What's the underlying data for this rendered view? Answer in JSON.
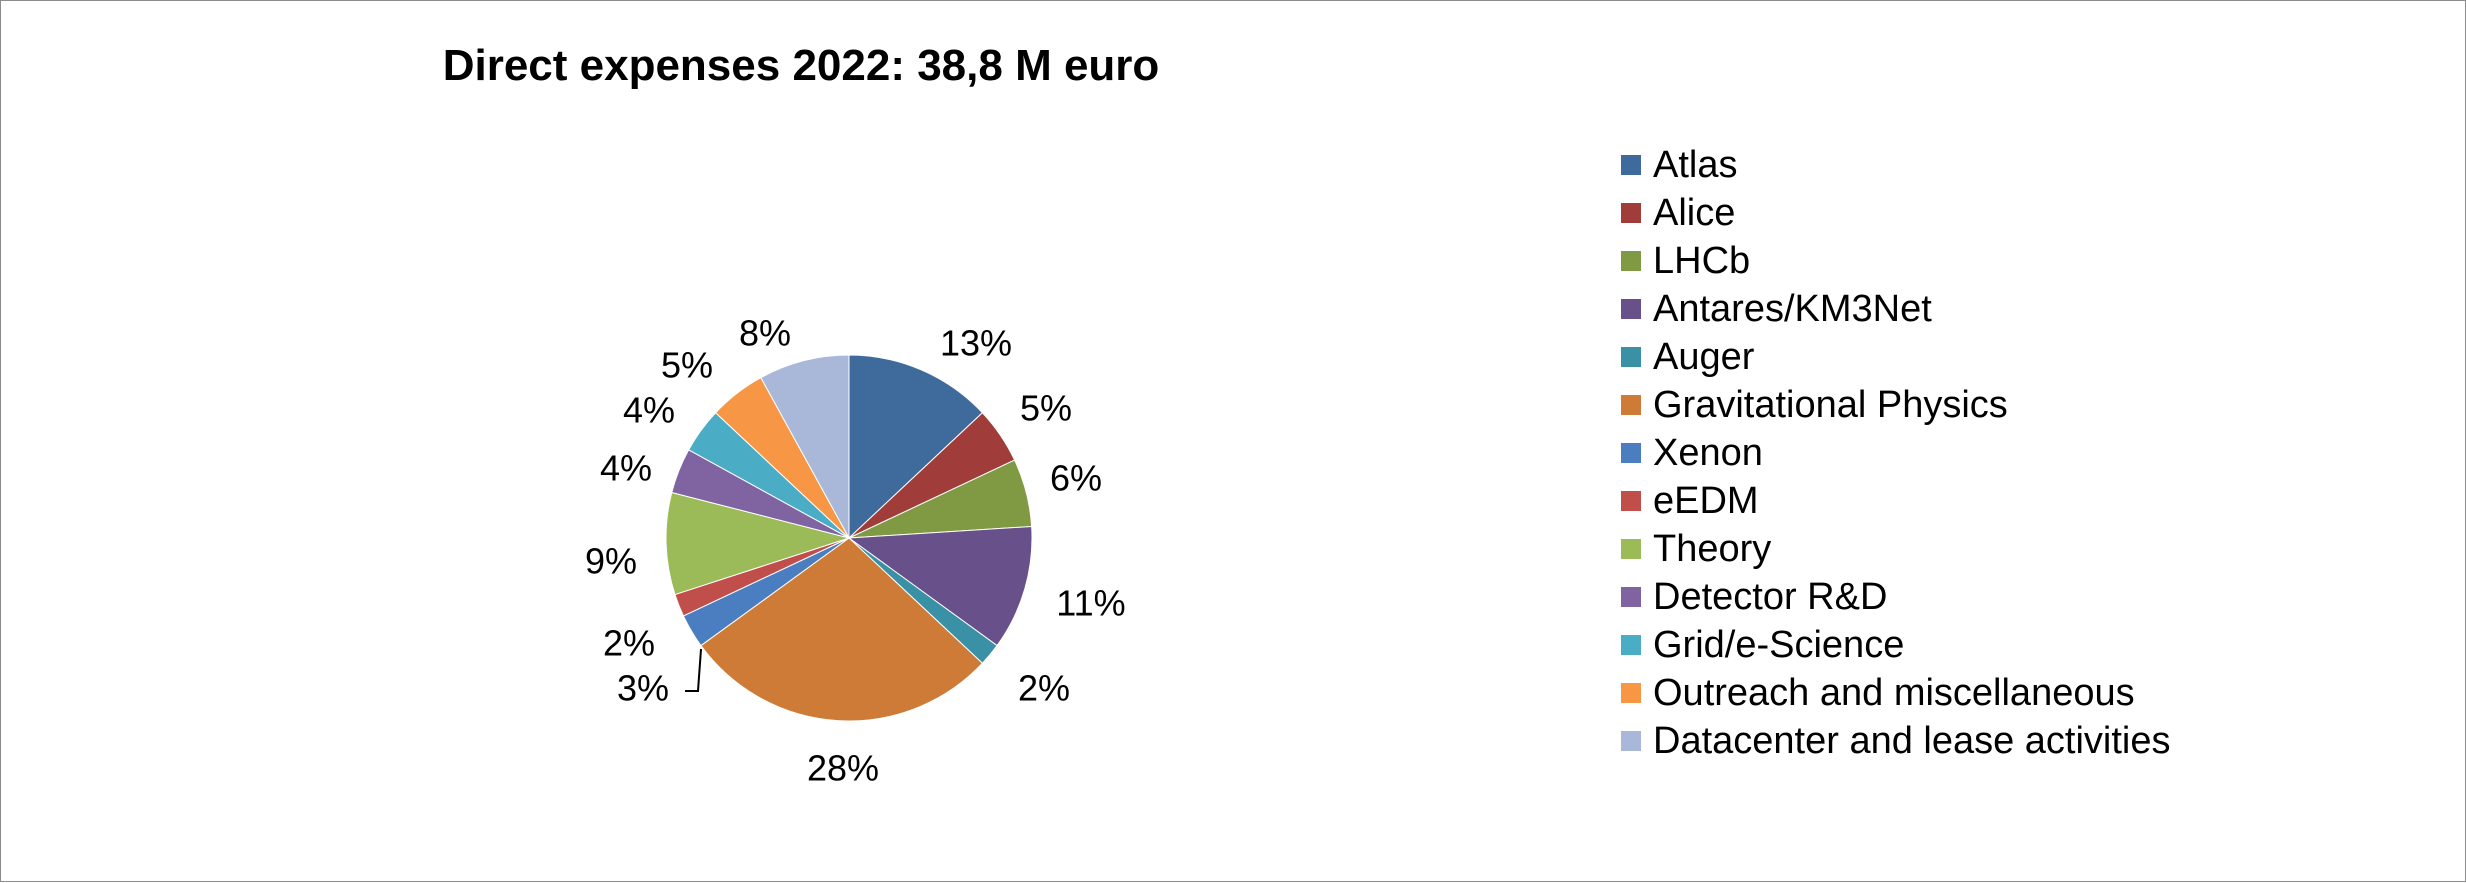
{
  "chart_data": {
    "type": "pie",
    "title": "Direct expenses 2022: 38,8 M euro",
    "legend_position": "right",
    "slices": [
      {
        "label": "Atlas",
        "value": 13,
        "display": "13%",
        "color": "#3F6A9C"
      },
      {
        "label": "Alice",
        "value": 5,
        "display": "5%",
        "color": "#A03D3A"
      },
      {
        "label": "LHCb",
        "value": 6,
        "display": "6%",
        "color": "#809A43"
      },
      {
        "label": "Antares/KM3Net",
        "value": 11,
        "display": "11%",
        "color": "#68508A"
      },
      {
        "label": "Auger",
        "value": 2,
        "display": "2%",
        "color": "#3A91A6"
      },
      {
        "label": "Gravitational Physics",
        "value": 28,
        "display": "28%",
        "color": "#CE7B37"
      },
      {
        "label": "Xenon",
        "value": 3,
        "display": "3%",
        "color": "#4A7EC1"
      },
      {
        "label": "eEDM",
        "value": 2,
        "display": "2%",
        "color": "#C04F4C"
      },
      {
        "label": "Theory",
        "value": 9,
        "display": "9%",
        "color": "#9BBB58"
      },
      {
        "label": "Detector R&D",
        "value": 4,
        "display": "4%",
        "color": "#8064A2"
      },
      {
        "label": "Grid/e-Science",
        "value": 4,
        "display": "4%",
        "color": "#4BACC6"
      },
      {
        "label": "Outreach and miscellaneous",
        "value": 5,
        "display": "5%",
        "color": "#F79645"
      },
      {
        "label": "Datacenter and lease activities",
        "value": 8,
        "display": "8%",
        "color": "#A9B8D9"
      }
    ]
  }
}
